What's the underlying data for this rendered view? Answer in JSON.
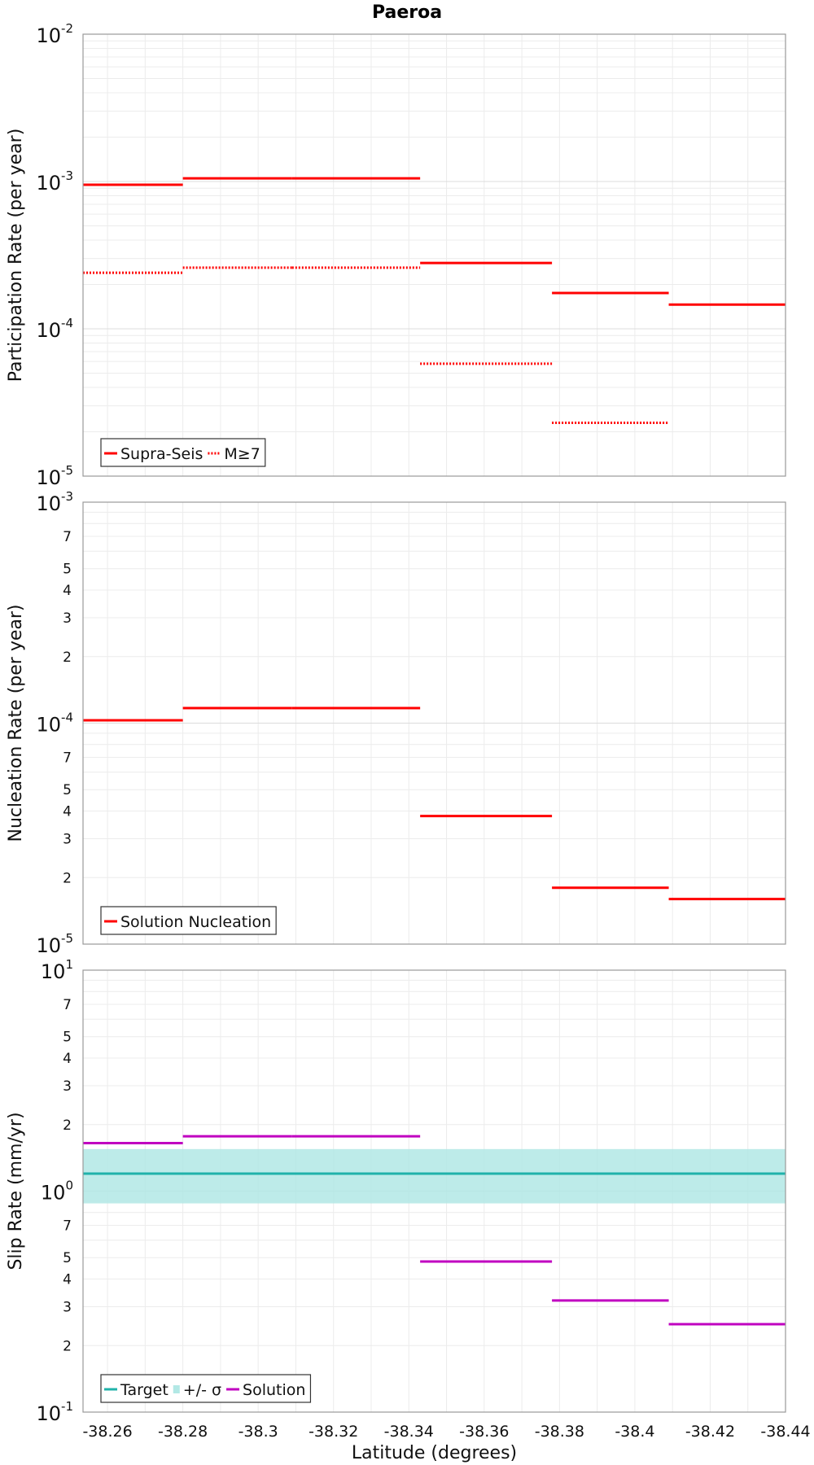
{
  "title": "Paeroa",
  "colors": {
    "supra_seis": "#ff0000",
    "target": "#20b2aa",
    "sigma_band": "#b2e8e5",
    "solution_slip": "#c000c0"
  },
  "chart_data": [
    {
      "type": "line",
      "panel": "participation",
      "ylabel": "Participation Rate (per year)",
      "yscale": "log",
      "ylim": [
        1e-05,
        0.01
      ],
      "grid": true,
      "legend_position": "bottom-left",
      "xlim": [
        -38.2535,
        -38.44
      ],
      "series": [
        {
          "name": "Supra-Seis",
          "style": "solid",
          "color": "#ff0000",
          "segments": [
            {
              "x0": -38.2535,
              "x1": -38.28,
              "y": 0.00095
            },
            {
              "x0": -38.28,
              "x1": -38.309,
              "y": 0.00105
            },
            {
              "x0": -38.309,
              "x1": -38.343,
              "y": 0.00105
            },
            {
              "x0": -38.343,
              "x1": -38.378,
              "y": 0.00028
            },
            {
              "x0": -38.378,
              "x1": -38.409,
              "y": 0.000175
            },
            {
              "x0": -38.409,
              "x1": -38.44,
              "y": 0.000146
            }
          ]
        },
        {
          "name": "M≥7",
          "style": "dotted",
          "color": "#ff0000",
          "segments": [
            {
              "x0": -38.2535,
              "x1": -38.28,
              "y": 0.00024
            },
            {
              "x0": -38.28,
              "x1": -38.309,
              "y": 0.00026
            },
            {
              "x0": -38.309,
              "x1": -38.343,
              "y": 0.00026
            },
            {
              "x0": -38.343,
              "x1": -38.378,
              "y": 5.8e-05
            },
            {
              "x0": -38.378,
              "x1": -38.409,
              "y": 2.3e-05
            }
          ]
        }
      ]
    },
    {
      "type": "line",
      "panel": "nucleation",
      "ylabel": "Nucleation Rate (per year)",
      "yscale": "log",
      "ylim": [
        1e-05,
        0.001
      ],
      "grid": true,
      "legend_position": "bottom-left",
      "xlim": [
        -38.2535,
        -38.44
      ],
      "series": [
        {
          "name": "Solution Nucleation",
          "style": "solid",
          "color": "#ff0000",
          "segments": [
            {
              "x0": -38.2535,
              "x1": -38.28,
              "y": 0.000103
            },
            {
              "x0": -38.28,
              "x1": -38.309,
              "y": 0.000117
            },
            {
              "x0": -38.309,
              "x1": -38.343,
              "y": 0.000117
            },
            {
              "x0": -38.343,
              "x1": -38.378,
              "y": 3.8e-05
            },
            {
              "x0": -38.378,
              "x1": -38.409,
              "y": 1.8e-05
            },
            {
              "x0": -38.409,
              "x1": -38.44,
              "y": 1.6e-05
            }
          ]
        }
      ]
    },
    {
      "type": "line",
      "panel": "slip",
      "ylabel": "Slip Rate (mm/yr)",
      "xlabel": "Latitude (degrees)",
      "yscale": "log",
      "ylim": [
        0.1,
        10
      ],
      "grid": true,
      "legend_position": "bottom-left",
      "xlim": [
        -38.2535,
        -38.44
      ],
      "x_ticks": [
        "-38.26",
        "-38.28",
        "-38.3",
        "-38.32",
        "-38.34",
        "-38.36",
        "-38.38",
        "-38.4",
        "-38.42",
        "-38.44"
      ],
      "series": [
        {
          "name": "Target",
          "style": "solid",
          "color": "#20b2aa",
          "value": 1.2
        },
        {
          "name": "+/- σ",
          "style": "band",
          "color": "#b2e8e5",
          "lower": 0.88,
          "upper": 1.55
        },
        {
          "name": "Solution",
          "style": "solid",
          "color": "#c000c0",
          "segments": [
            {
              "x0": -38.2535,
              "x1": -38.28,
              "y": 1.65
            },
            {
              "x0": -38.28,
              "x1": -38.309,
              "y": 1.77
            },
            {
              "x0": -38.309,
              "x1": -38.343,
              "y": 1.77
            },
            {
              "x0": -38.343,
              "x1": -38.378,
              "y": 0.48
            },
            {
              "x0": -38.378,
              "x1": -38.409,
              "y": 0.32
            },
            {
              "x0": -38.409,
              "x1": -38.44,
              "y": 0.25
            }
          ]
        }
      ]
    }
  ],
  "minor_tick_labels": {
    "nucleation": [
      "7",
      "5",
      "4",
      "3",
      "2"
    ],
    "slip": [
      "7",
      "5",
      "4",
      "3",
      "2"
    ]
  }
}
